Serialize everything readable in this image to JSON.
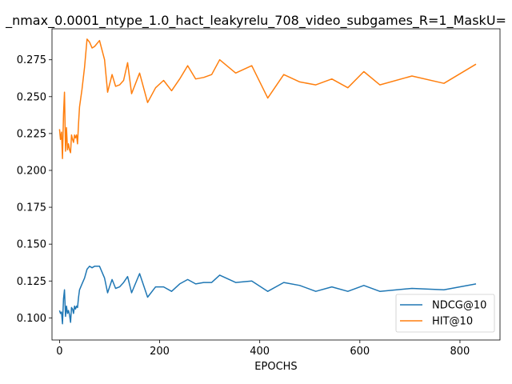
{
  "chart_data": {
    "type": "line",
    "title": "_nmax_0.0001_ntype_1.0_hact_leakyrelu_708_video_subgames_R=1_MaskU=",
    "xlabel": "EPOCHS",
    "ylabel": "",
    "xlim": [
      -15,
      880
    ],
    "ylim": [
      0.085,
      0.296
    ],
    "xticks": [
      0,
      200,
      400,
      600,
      800
    ],
    "xtick_labels": [
      "0",
      "200",
      "400",
      "600",
      "800"
    ],
    "yticks": [
      0.1,
      0.125,
      0.15,
      0.175,
      0.2,
      0.225,
      0.25,
      0.275
    ],
    "ytick_labels": [
      "0.100",
      "0.125",
      "0.150",
      "0.175",
      "0.200",
      "0.225",
      "0.250",
      "0.275"
    ],
    "grid": false,
    "legend_position": "lower-right",
    "series": [
      {
        "name": "NDCG@10",
        "color": "#1f77b4",
        "x": [
          0,
          2,
          4,
          6,
          8,
          10,
          12,
          14,
          16,
          18,
          20,
          22,
          24,
          26,
          28,
          30,
          32,
          34,
          36,
          38,
          40,
          45,
          50,
          55,
          60,
          65,
          70,
          80,
          90,
          96,
          105,
          112,
          120,
          128,
          136,
          144,
          160,
          176,
          192,
          208,
          224,
          240,
          256,
          272,
          288,
          304,
          320,
          352,
          384,
          416,
          448,
          480,
          512,
          544,
          576,
          608,
          640,
          704,
          768,
          832
        ],
        "y": [
          0.105,
          0.103,
          0.104,
          0.096,
          0.113,
          0.119,
          0.101,
          0.108,
          0.103,
          0.105,
          0.102,
          0.097,
          0.107,
          0.106,
          0.103,
          0.108,
          0.106,
          0.108,
          0.107,
          0.114,
          0.119,
          0.123,
          0.127,
          0.133,
          0.135,
          0.134,
          0.135,
          0.135,
          0.127,
          0.117,
          0.126,
          0.12,
          0.121,
          0.124,
          0.128,
          0.117,
          0.13,
          0.114,
          0.121,
          0.121,
          0.118,
          0.123,
          0.126,
          0.123,
          0.124,
          0.124,
          0.129,
          0.124,
          0.125,
          0.118,
          0.124,
          0.122,
          0.118,
          0.121,
          0.118,
          0.122,
          0.118,
          0.12,
          0.119,
          0.123
        ]
      },
      {
        "name": "HIT@10",
        "color": "#ff7f0e",
        "x": [
          0,
          2,
          4,
          6,
          8,
          10,
          12,
          14,
          16,
          18,
          20,
          22,
          24,
          26,
          28,
          30,
          32,
          34,
          36,
          38,
          40,
          45,
          50,
          55,
          60,
          65,
          70,
          80,
          90,
          96,
          105,
          112,
          120,
          128,
          136,
          144,
          160,
          176,
          192,
          208,
          224,
          240,
          256,
          272,
          288,
          304,
          320,
          352,
          384,
          416,
          448,
          480,
          512,
          544,
          576,
          608,
          640,
          704,
          768,
          832
        ],
        "y": [
          0.228,
          0.221,
          0.226,
          0.208,
          0.238,
          0.253,
          0.213,
          0.229,
          0.214,
          0.218,
          0.214,
          0.212,
          0.224,
          0.221,
          0.219,
          0.224,
          0.222,
          0.224,
          0.218,
          0.232,
          0.243,
          0.255,
          0.27,
          0.289,
          0.287,
          0.283,
          0.284,
          0.288,
          0.275,
          0.253,
          0.265,
          0.257,
          0.258,
          0.261,
          0.273,
          0.252,
          0.266,
          0.246,
          0.256,
          0.261,
          0.254,
          0.262,
          0.271,
          0.262,
          0.263,
          0.265,
          0.275,
          0.266,
          0.271,
          0.249,
          0.265,
          0.26,
          0.258,
          0.262,
          0.256,
          0.267,
          0.258,
          0.264,
          0.259,
          0.272
        ]
      }
    ]
  }
}
